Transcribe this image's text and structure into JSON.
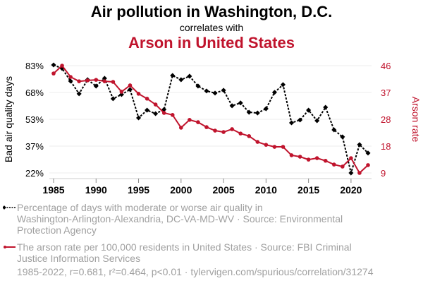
{
  "title": "Air pollution in Washington, D.C.",
  "subtitle": "correlates with",
  "title2": "Arson in United States",
  "colors": {
    "series1": "#000000",
    "series2": "#c0142d",
    "grid": "#eeeeee",
    "axis": "#cccccc"
  },
  "chart_data": {
    "type": "line",
    "title": "Air pollution in Washington, D.C. correlates with Arson in United States",
    "xlabel": "",
    "ylabel": "Bad air quality days",
    "y2label": "Arson rate",
    "x": [
      1985,
      1986,
      1987,
      1988,
      1989,
      1990,
      1991,
      1992,
      1993,
      1994,
      1995,
      1996,
      1997,
      1998,
      1999,
      2000,
      2001,
      2002,
      2003,
      2004,
      2005,
      2006,
      2007,
      2008,
      2009,
      2010,
      2011,
      2012,
      2013,
      2014,
      2015,
      2016,
      2017,
      2018,
      2019,
      2020,
      2021,
      2022
    ],
    "xlim": [
      1985,
      2022
    ],
    "xticks": [
      "1985",
      "1990",
      "1995",
      "2000",
      "2005",
      "2010",
      "2015",
      "2020"
    ],
    "ylim": [
      22,
      83
    ],
    "yticks": [
      "83%",
      "68%",
      "53%",
      "37%",
      "22%"
    ],
    "y2lim": [
      9,
      46
    ],
    "y2ticks": [
      "46",
      "37",
      "28",
      "18",
      "9"
    ],
    "grid": true,
    "series": [
      {
        "name": "Percentage of days with moderate or worse air quality in Washington-Arlington-Alexandria, DC-VA-MD-WV",
        "axis": "left",
        "style": "dashed-diamond",
        "values": [
          83.4,
          81.4,
          74.2,
          67.0,
          75.0,
          71.4,
          75.8,
          64.2,
          66.6,
          69.4,
          53.3,
          57.7,
          55.7,
          58.1,
          77.4,
          75.0,
          77.0,
          71.4,
          68.6,
          67.4,
          69.0,
          60.2,
          61.8,
          56.5,
          56.1,
          58.5,
          67.8,
          72.2,
          50.5,
          52.1,
          57.7,
          51.7,
          59.3,
          46.5,
          42.5,
          22.0,
          38.1,
          33.3
        ]
      },
      {
        "name": "The arson rate per 100,000 residents in United States",
        "axis": "right",
        "style": "solid-circle",
        "values": [
          43.3,
          46.0,
          42.1,
          40.6,
          40.9,
          41.1,
          40.6,
          40.4,
          37.0,
          39.2,
          36.3,
          34.6,
          32.6,
          29.7,
          29.0,
          24.6,
          27.3,
          26.5,
          24.8,
          23.6,
          23.1,
          24.1,
          22.6,
          21.7,
          19.7,
          18.7,
          18.0,
          18.0,
          15.1,
          14.6,
          13.6,
          14.1,
          13.2,
          11.9,
          11.2,
          14.1,
          9.0,
          11.7
        ]
      }
    ],
    "legend_placement": "bottom-left"
  },
  "legend": {
    "item1": [
      "Percentage of days with moderate or worse air quality in",
      "Washington-Arlington-Alexandria, DC-VA-MD-WV · Source: Environmental",
      "Protection Agency"
    ],
    "item2": [
      "The arson rate per 100,000 residents in United States · Source: FBI Criminal",
      "Justice Information Services"
    ]
  },
  "footer": "1985-2022, r=0.681, r²=0.464, p<0.01 · tylervigen.com/spurious/correlation/31274"
}
